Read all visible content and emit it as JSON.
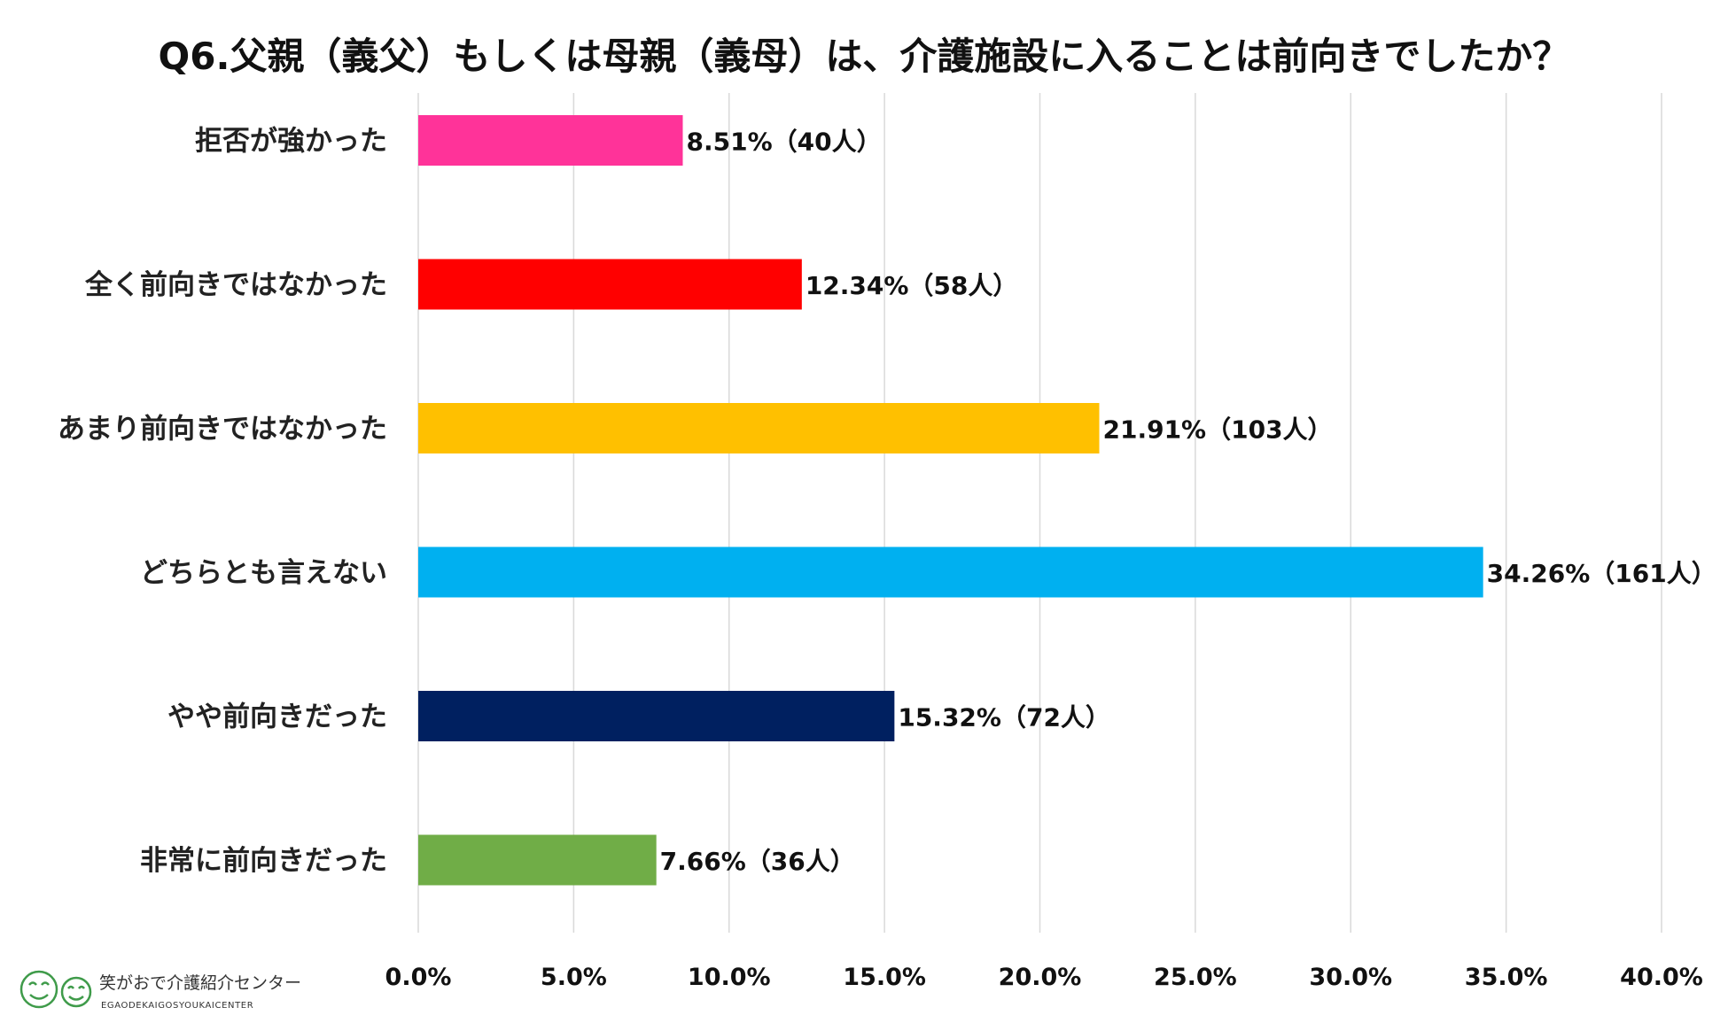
{
  "chart_data": {
    "type": "bar",
    "orientation": "horizontal",
    "title": "Q6.父親（義父）もしくは母親（義母）は、介護施設に入ることは前向きでしたか？",
    "categories": [
      "拒否が強かった",
      "全く前向きではなかった",
      "あまり前向きではなかった",
      "どちらとも言えない",
      "やや前向きだった",
      "非常に前向きだった"
    ],
    "values": [
      8.51,
      12.34,
      21.91,
      34.26,
      15.32,
      7.66
    ],
    "data_labels": [
      "8.51%（40人）",
      "12.34%（58人）",
      "21.91%（103人）",
      "34.26%（161人）",
      "15.32%（72人）",
      "7.66%（36人）"
    ],
    "colors": [
      "#ff3399",
      "#ff0000",
      "#ffc000",
      "#00b0f0",
      "#002060",
      "#70ad47"
    ],
    "xlim": [
      0,
      40
    ],
    "x_ticks": [
      0,
      5,
      10,
      15,
      20,
      25,
      30,
      35,
      40
    ],
    "x_tick_labels": [
      "0.0%",
      "5.0%",
      "10.0%",
      "15.0%",
      "20.0%",
      "25.0%",
      "30.0%",
      "35.0%",
      "40.0%"
    ],
    "xlabel": "",
    "ylabel": "",
    "grid": true,
    "legend": "none"
  },
  "logo": {
    "name": "笑がおで介護紹介センター",
    "romaji": "EGAODEKAIGOSYOUKAICENTER"
  },
  "colors": {
    "grid": "#d9d9d9",
    "logo_green": "#3f9b4a"
  }
}
